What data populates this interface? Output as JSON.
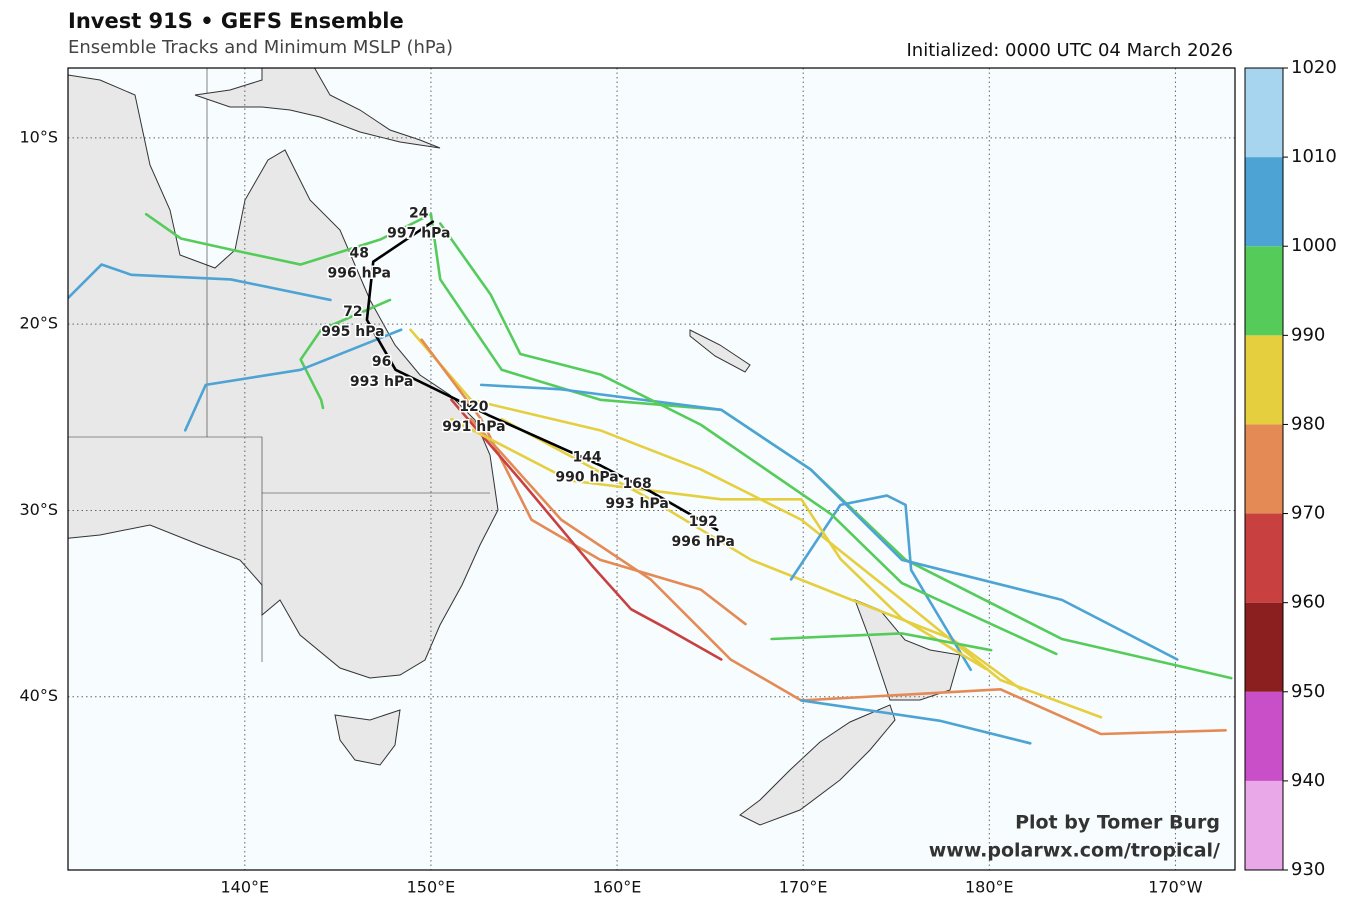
{
  "header": {
    "title": "Invest 91S • GEFS Ensemble",
    "subtitle": "Ensemble Tracks and Minimum MSLP (hPa)",
    "initialized": "Initialized: 0000 UTC 04 March 2026"
  },
  "map": {
    "lon_range": [
      130.5,
      193.2
    ],
    "lat_range": [
      -6.25,
      -49.3
    ],
    "grid": true,
    "lon_ticks": [
      {
        "value": 140,
        "label": "140°E"
      },
      {
        "value": 150,
        "label": "150°E"
      },
      {
        "value": 160,
        "label": "160°E"
      },
      {
        "value": 170,
        "label": "170°E"
      },
      {
        "value": 180,
        "label": "180°E"
      },
      {
        "value": 190,
        "label": "170°W"
      }
    ],
    "lat_ticks": [
      {
        "value": -10,
        "label": "10°S"
      },
      {
        "value": -20,
        "label": "20°S"
      },
      {
        "value": -30,
        "label": "30°S"
      },
      {
        "value": -40,
        "label": "40°S"
      }
    ],
    "mean_track": {
      "color": "#000000",
      "points": [
        {
          "hour": 24,
          "mslp": {
            "value": 997,
            "label": "997 hPa"
          },
          "lon": 150.1,
          "lat": -14.5
        },
        {
          "hour": 48,
          "mslp": {
            "value": 996,
            "label": "996 hPa"
          },
          "lon": 146.9,
          "lat": -16.65
        },
        {
          "hour": 72,
          "mslp": {
            "value": 995,
            "label": "995 hPa"
          },
          "lon": 146.56,
          "lat": -19.77
        },
        {
          "hour": 96,
          "mslp": {
            "value": 993,
            "label": "993 hPa"
          },
          "lon": 148.1,
          "lat": -22.45
        },
        {
          "hour": 120,
          "mslp": {
            "value": 991,
            "label": "991 hPa"
          },
          "lon": 153.06,
          "lat": -24.87
        },
        {
          "hour": 144,
          "mslp": {
            "value": 990,
            "label": "990 hPa"
          },
          "lon": 159.14,
          "lat": -27.6
        },
        {
          "hour": 168,
          "mslp": {
            "value": 993,
            "label": "993 hPa"
          },
          "lon": 161.83,
          "lat": -29.0
        },
        {
          "hour": 192,
          "mslp": {
            "value": 996,
            "label": "996 hPa"
          },
          "lon": 165.38,
          "lat": -31.04
        }
      ]
    },
    "tracks": [
      {
        "color": "#55cc5a",
        "lon": [
          150.0,
          147.3,
          143.0,
          139.25,
          136.56,
          134.7
        ],
        "lat": [
          -14.1,
          -15.45,
          -16.8,
          -16.0,
          -15.4,
          -14.1
        ]
      },
      {
        "color": "#4da3d4",
        "lon": [
          144.6,
          139.25,
          133.9,
          132.3,
          130.5
        ],
        "lat": [
          -18.7,
          -17.6,
          -17.35,
          -16.8,
          -18.6
        ]
      },
      {
        "color": "#55cc5a",
        "lon": [
          147.8,
          144.1,
          143.0,
          144.1,
          144.2
        ],
        "lat": [
          -18.7,
          -20.3,
          -21.9,
          -24.06,
          -24.5
        ]
      },
      {
        "color": "#4da3d4",
        "lon": [
          148.4,
          143.0,
          137.9,
          136.8
        ],
        "lat": [
          -20.3,
          -22.45,
          -23.26,
          -25.7
        ]
      },
      {
        "color": "#55cc5a",
        "lon": [
          150.0,
          150.5,
          153.8,
          159.1,
          165.6,
          170.4,
          175.5,
          183.9,
          193.0
        ],
        "lat": [
          -14.1,
          -17.6,
          -22.45,
          -24.06,
          -24.6,
          -27.8,
          -32.65,
          -36.9,
          -39.0
        ]
      },
      {
        "color": "#4da3d4",
        "lon": [
          152.7,
          157.0,
          165.6,
          170.4,
          175.3,
          183.9,
          190.1
        ],
        "lat": [
          -23.26,
          -23.5,
          -24.6,
          -27.8,
          -32.65,
          -34.8,
          -38.0
        ]
      },
      {
        "color": "#e6cf3e",
        "lon": [
          148.9,
          152.15,
          159.1,
          164.5,
          169.9,
          175.3,
          180.6,
          186.0
        ],
        "lat": [
          -20.3,
          -24.06,
          -25.7,
          -27.8,
          -30.5,
          -34.8,
          -39.1,
          -41.1
        ]
      },
      {
        "color": "#e48b55",
        "lon": [
          149.5,
          152.7,
          155.4,
          159.1,
          164.5,
          166.9
        ],
        "lat": [
          -20.84,
          -25.1,
          -30.5,
          -32.65,
          -34.25,
          -36.1
        ]
      },
      {
        "color": "#c84040",
        "lon": [
          151.1,
          154.8,
          158.6,
          160.75,
          162.6,
          165.6
        ],
        "lat": [
          -24.06,
          -28.36,
          -32.9,
          -35.3,
          -36.3,
          -38.0
        ]
      },
      {
        "color": "#e48b55",
        "lon": [
          152.15,
          157.0,
          161.8,
          166.1,
          169.9,
          180.6,
          186.0,
          192.7
        ],
        "lat": [
          -25.1,
          -30.5,
          -33.7,
          -38.0,
          -40.2,
          -39.6,
          -42.0,
          -41.8
        ]
      },
      {
        "color": "#e6cf3e",
        "lon": [
          153.8,
          161.8,
          167.2,
          172.6,
          178.0,
          181.7
        ],
        "lat": [
          -25.1,
          -29.4,
          -32.65,
          -34.8,
          -36.9,
          -39.6
        ]
      },
      {
        "color": "#4da3d4",
        "lon": [
          169.35,
          172.0,
          174.5,
          175.5,
          175.8,
          179.0
        ],
        "lat": [
          -33.7,
          -29.7,
          -29.2,
          -29.7,
          -33.2,
          -38.55
        ]
      },
      {
        "color": "#55cc5a",
        "lon": [
          150.5,
          153.2,
          154.8,
          159.1,
          164.5,
          171.5,
          175.3,
          183.6
        ],
        "lat": [
          -14.6,
          -18.4,
          -21.6,
          -22.7,
          -25.4,
          -30.2,
          -33.9,
          -37.7
        ]
      },
      {
        "color": "#e6cf3e",
        "lon": [
          151.1,
          157.5,
          165.6,
          169.9,
          172.0,
          175.3,
          179.8
        ],
        "lat": [
          -25.1,
          -28.4,
          -29.4,
          -29.4,
          -32.6,
          -35.8,
          -38.5
        ]
      },
      {
        "color": "#55cc5a",
        "lon": [
          168.3,
          175.3,
          180.1
        ],
        "lat": [
          -36.9,
          -36.6,
          -37.5
        ]
      },
      {
        "color": "#4da3d4",
        "lon": [
          169.9,
          177.4,
          182.2
        ],
        "lat": [
          -40.2,
          -41.3,
          -42.5
        ]
      }
    ]
  },
  "colorbar": {
    "levels": [
      930,
      940,
      950,
      960,
      970,
      980,
      990,
      1000,
      1010,
      1020
    ],
    "colors": [
      "#e9a8e8",
      "#c84fc8",
      "#8b1f1f",
      "#c84040",
      "#e48b55",
      "#e6cf3e",
      "#55cc5a",
      "#4da3d4",
      "#a7d4ee"
    ]
  },
  "credits": [
    "Plot by Tomer Burg",
    "www.polarwx.com/tropical/"
  ]
}
